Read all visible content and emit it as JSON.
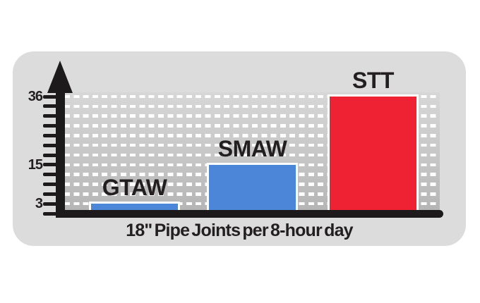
{
  "chart_data": {
    "type": "bar",
    "title": "18\" Pipe Joints per 8-hour day",
    "title_position": "bottom",
    "categories": [
      "GTAW",
      "SMAW",
      "STT"
    ],
    "values": [
      3,
      15,
      36
    ],
    "bar_colors": [
      "#4b86d8",
      "#4b86d8",
      "#ee2232"
    ],
    "ylim": [
      0,
      36
    ],
    "ytick_step": 3,
    "yticks_labeled": [
      36,
      15,
      3
    ],
    "xlabel": "",
    "ylabel": "",
    "grid": "horizontal-dashed-white",
    "legend_position": "none"
  },
  "colors": {
    "page_background": "#ffffff",
    "panel_background": "#dcdcdc",
    "plot_gradient_top": "#d7d7d7",
    "plot_gradient_bottom": "#b4b4b4",
    "gridline_dash": "#ffffff",
    "axis_black": "#1d1a1b",
    "label_text": "#231f20",
    "bar_blue": "#4b86d8",
    "bar_red": "#ee2232",
    "bar_outline": "#ffffff"
  }
}
